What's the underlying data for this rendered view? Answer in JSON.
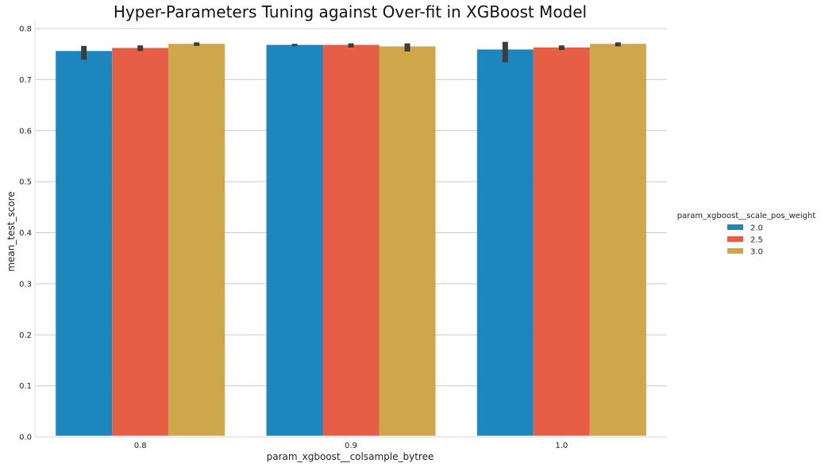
{
  "chart_data": {
    "type": "bar",
    "title": "Hyper-Parameters Tuning against Over-fit in XGBoost Model",
    "xlabel": "param_xgboost__colsample_bytree",
    "ylabel": "mean_test_score",
    "categories": [
      "0.8",
      "0.9",
      "1.0"
    ],
    "ylim": [
      0,
      0.8
    ],
    "yticks": [
      "0.0",
      "0.1",
      "0.2",
      "0.3",
      "0.4",
      "0.5",
      "0.6",
      "0.7",
      "0.8"
    ],
    "grid": "horizontal",
    "legend": {
      "title": "param_xgboost__scale_pos_weight",
      "placement": "right"
    },
    "series": [
      {
        "name": "2.0",
        "color": "#1c86bd",
        "values": [
          0.756,
          0.768,
          0.759
        ],
        "error_low": [
          0.739,
          0.766,
          0.734
        ],
        "error_high": [
          0.766,
          0.77,
          0.774
        ]
      },
      {
        "name": "2.5",
        "color": "#e55e45",
        "values": [
          0.762,
          0.768,
          0.763
        ],
        "error_low": [
          0.756,
          0.763,
          0.758
        ],
        "error_high": [
          0.767,
          0.771,
          0.767
        ]
      },
      {
        "name": "3.0",
        "color": "#cfa64a",
        "values": [
          0.77,
          0.765,
          0.77
        ],
        "error_low": [
          0.766,
          0.755,
          0.765
        ],
        "error_high": [
          0.773,
          0.771,
          0.773
        ]
      }
    ]
  }
}
